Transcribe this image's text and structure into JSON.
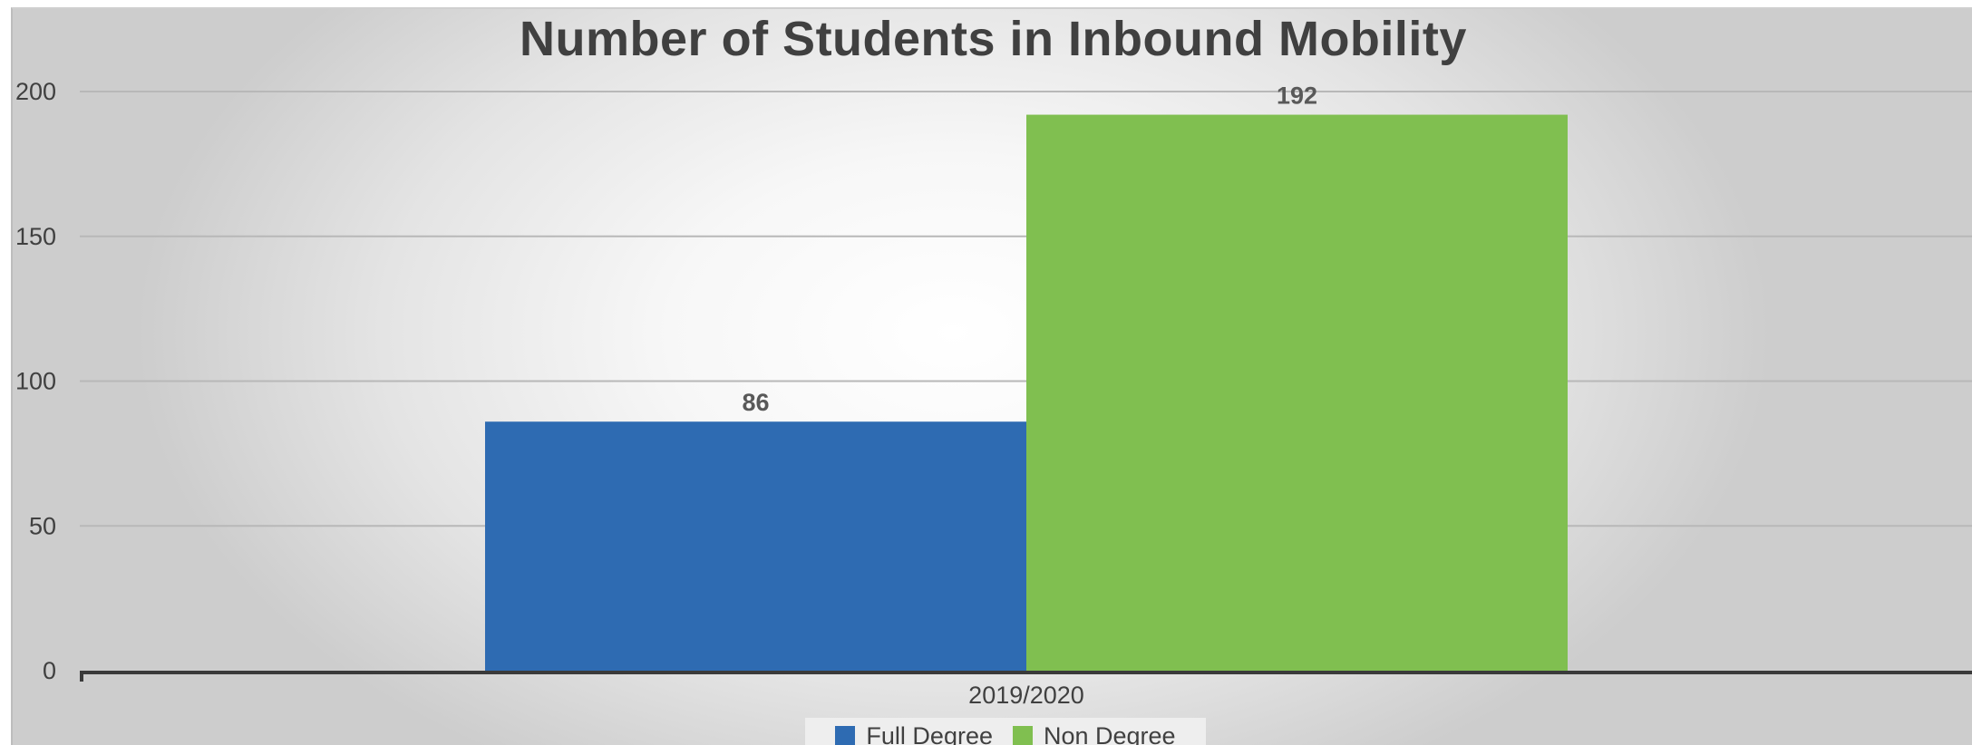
{
  "chart_data": {
    "type": "bar",
    "title": "Number of Students in Inbound Mobility",
    "categories": [
      "2019/2020"
    ],
    "series": [
      {
        "name": "Full Degree",
        "values": [
          86
        ],
        "color": "#2E6BB2"
      },
      {
        "name": "Non Degree",
        "values": [
          192
        ],
        "color": "#80BF50"
      }
    ],
    "ylim": [
      0,
      200
    ],
    "yticks": [
      "0",
      "50",
      "100",
      "150",
      "200"
    ],
    "data_labels": [
      "86",
      "192"
    ],
    "grid": true,
    "legend": "bottom"
  }
}
